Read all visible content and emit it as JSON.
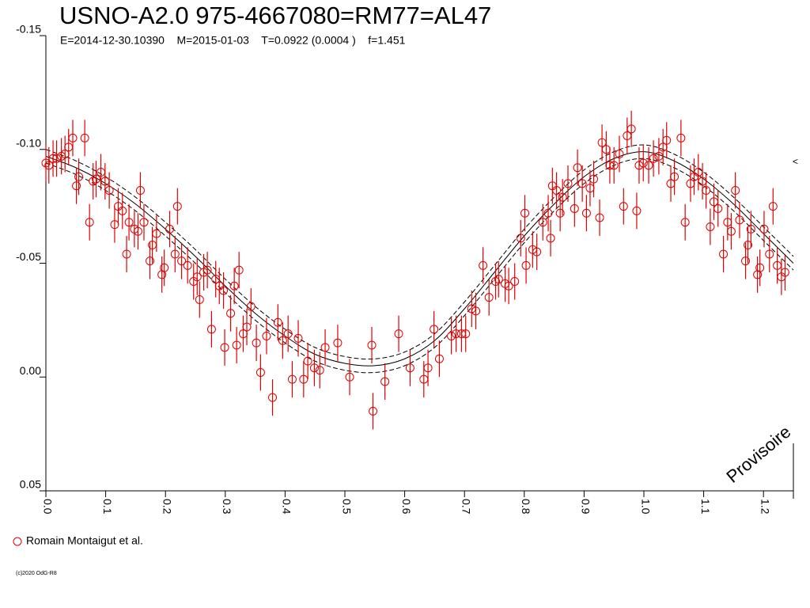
{
  "chart_data": {
    "type": "scatter",
    "title": "USNO-A2.0 975-4667080=RM77=AL47",
    "subtitle": "E=2014-12-30.10390    M=2015-01-03    T=0.0922 (0.0004 )    f=1.451",
    "watermark": "Provisoire",
    "marker_note": "<",
    "copyright": "(c)2020 OdG-R8",
    "xlim": [
      0,
      1.25
    ],
    "ylim": [
      -0.15,
      0.05
    ],
    "y_inverted": true,
    "xticks": [
      {
        "value": 0,
        "label": "0.0"
      },
      0.1,
      0.2,
      0.3,
      0.4,
      0.5,
      0.6,
      0.7,
      0.8,
      0.9,
      {
        "value": 1,
        "label": "1.0"
      },
      1.1,
      1.2
    ],
    "yticks": [
      {
        "value": -0.15,
        "label": "-0.15"
      },
      {
        "value": -0.1,
        "label": "-0.10"
      },
      {
        "value": -0.05,
        "label": "-0.05"
      },
      {
        "value": 0,
        "label": "0.00"
      },
      {
        "value": 0.05,
        "label": "0.05"
      }
    ],
    "error": 0.008,
    "series": [
      {
        "name": "Romain Montaigut et al.",
        "color": "#e00000",
        "x": [
          0.0,
          0.005,
          0.012,
          0.018,
          0.026,
          0.032,
          0.038,
          0.045,
          0.051,
          0.055,
          0.065,
          0.073,
          0.079,
          0.084,
          0.092,
          0.099,
          0.106,
          0.115,
          0.121,
          0.128,
          0.135,
          0.139,
          0.148,
          0.154,
          0.158,
          0.164,
          0.174,
          0.178,
          0.185,
          0.194,
          0.198,
          0.207,
          0.216,
          0.22,
          0.227,
          0.237,
          0.247,
          0.253,
          0.257,
          0.264,
          0.27,
          0.277,
          0.284,
          0.29,
          0.297,
          0.299,
          0.309,
          0.315,
          0.319,
          0.323,
          0.33,
          0.336,
          0.343,
          0.352,
          0.359,
          0.369,
          0.379,
          0.388,
          0.396,
          0.405,
          0.412,
          0.422,
          0.431,
          0.438,
          0.449,
          0.458,
          0.467,
          0.488,
          0.508,
          0.547,
          0.545,
          0.567,
          0.59,
          0.609,
          0.632,
          0.639,
          0.649,
          0.658,
          0.678,
          0.686,
          0.695,
          0.702,
          0.712,
          0.719,
          0.731,
          0.741,
          0.752,
          0.757,
          0.768,
          0.774,
          0.784,
          0.794,
          0.801,
          0.803,
          0.814,
          0.821,
          0.831,
          0.84,
          0.844,
          0.847,
          0.854,
          0.86,
          0.864,
          0.873,
          0.884,
          0.889,
          0.897,
          0.904,
          0.91,
          0.916,
          0.926,
          0.93,
          0.937,
          0.943,
          0.95,
          0.959,
          0.966,
          0.972,
          0.979,
          0.988,
          0.992,
          0.999,
          1.008,
          1.016,
          1.025,
          1.032,
          1.038,
          1.045,
          1.051,
          1.062,
          1.069,
          1.078,
          1.084,
          1.091,
          1.098,
          1.104,
          1.111,
          1.117,
          1.124,
          1.133,
          1.14,
          1.146,
          1.153,
          1.16,
          1.17,
          1.174,
          1.179,
          1.19,
          1.194,
          1.201,
          1.21,
          1.216,
          1.223,
          1.23,
          1.236
        ],
        "values": [
          -0.094,
          -0.093,
          -0.096,
          -0.096,
          -0.097,
          -0.098,
          -0.101,
          -0.105,
          -0.084,
          -0.088,
          -0.105,
          -0.068,
          -0.086,
          -0.087,
          -0.09,
          -0.086,
          -0.082,
          -0.067,
          -0.075,
          -0.073,
          -0.054,
          -0.068,
          -0.065,
          -0.064,
          -0.082,
          -0.068,
          -0.051,
          -0.058,
          -0.063,
          -0.045,
          -0.048,
          -0.065,
          -0.054,
          -0.075,
          -0.051,
          -0.049,
          -0.042,
          -0.044,
          -0.034,
          -0.046,
          -0.047,
          -0.021,
          -0.043,
          -0.04,
          -0.038,
          -0.013,
          -0.028,
          -0.04,
          -0.014,
          -0.047,
          -0.019,
          -0.022,
          -0.031,
          -0.015,
          -0.002,
          -0.018,
          0.009,
          -0.024,
          -0.016,
          -0.019,
          0.001,
          -0.017,
          0.001,
          -0.007,
          -0.004,
          -0.003,
          -0.013,
          -0.015,
          0.0,
          0.015,
          -0.014,
          0.002,
          -0.019,
          -0.004,
          0.001,
          -0.004,
          -0.021,
          -0.008,
          -0.018,
          -0.019,
          -0.019,
          -0.019,
          -0.03,
          -0.029,
          -0.049,
          -0.035,
          -0.042,
          -0.043,
          -0.041,
          -0.04,
          -0.042,
          -0.061,
          -0.072,
          -0.049,
          -0.056,
          -0.055,
          -0.068,
          -0.072,
          -0.061,
          -0.084,
          -0.082,
          -0.072,
          -0.079,
          -0.085,
          -0.074,
          -0.092,
          -0.085,
          -0.072,
          -0.083,
          -0.087,
          -0.07,
          -0.103,
          -0.1,
          -0.093,
          -0.093,
          -0.098,
          -0.075,
          -0.106,
          -0.109,
          -0.073,
          -0.093,
          -0.094,
          -0.093,
          -0.096,
          -0.097,
          -0.101,
          -0.104,
          -0.085,
          -0.088,
          -0.105,
          -0.068,
          -0.085,
          -0.088,
          -0.09,
          -0.086,
          -0.082,
          -0.066,
          -0.077,
          -0.074,
          -0.054,
          -0.068,
          -0.064,
          -0.082,
          -0.069,
          -0.051,
          -0.058,
          -0.065,
          -0.045,
          -0.048,
          -0.065,
          -0.054,
          -0.075,
          -0.049,
          -0.044,
          -0.046
        ]
      }
    ],
    "fit_x": [
      0,
      0.05,
      0.1,
      0.15,
      0.2,
      0.25,
      0.3,
      0.35,
      0.4,
      0.45,
      0.5,
      0.55,
      0.6,
      0.65,
      0.7,
      0.75,
      0.8,
      0.85,
      0.9,
      0.95,
      1,
      1.05,
      1.1,
      1.15,
      1.2,
      1.25
    ],
    "fits": [
      {
        "color": "#000000",
        "dashed": false,
        "values": [
          -0.097,
          -0.092,
          -0.085,
          -0.076,
          -0.065,
          -0.053,
          -0.04,
          -0.028,
          -0.018,
          -0.01,
          -0.006,
          -0.005,
          -0.008,
          -0.016,
          -0.03,
          -0.046,
          -0.062,
          -0.076,
          -0.088,
          -0.096,
          -0.099,
          -0.095,
          -0.087,
          -0.076,
          -0.063,
          -0.05
        ]
      },
      {
        "color": "#000000",
        "dashed": true,
        "values": [
          -0.1,
          -0.095,
          -0.088,
          -0.079,
          -0.068,
          -0.056,
          -0.043,
          -0.031,
          -0.021,
          -0.013,
          -0.009,
          -0.008,
          -0.011,
          -0.019,
          -0.033,
          -0.049,
          -0.065,
          -0.079,
          -0.091,
          -0.099,
          -0.102,
          -0.098,
          -0.09,
          -0.079,
          -0.066,
          -0.053
        ]
      },
      {
        "color": "#000000",
        "dashed": true,
        "values": [
          -0.094,
          -0.089,
          -0.082,
          -0.073,
          -0.062,
          -0.05,
          -0.037,
          -0.025,
          -0.015,
          -0.007,
          -0.003,
          -0.002,
          -0.005,
          -0.013,
          -0.027,
          -0.043,
          -0.059,
          -0.073,
          -0.085,
          -0.093,
          -0.096,
          -0.092,
          -0.084,
          -0.073,
          -0.06,
          -0.047
        ]
      }
    ]
  }
}
